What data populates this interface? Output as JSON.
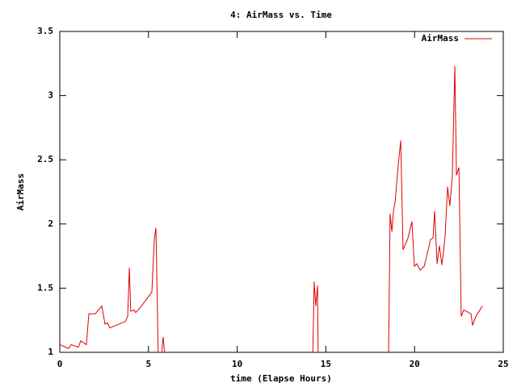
{
  "chart_data": {
    "type": "line",
    "title": "4: AirMass vs. Time",
    "x_label": "time (Elapse Hours)",
    "y_label": "AirMass",
    "x": [
      0,
      0.5,
      0.64,
      1.05,
      1.18,
      1.5,
      1.64,
      2.0,
      2.37,
      2.55,
      2.69,
      2.82,
      3.69,
      3.83,
      3.92,
      4.0,
      4.19,
      4.28,
      4.6,
      5.19,
      5.33,
      5.42,
      5.56,
      5.74,
      5.83,
      5.97,
      10,
      14.25,
      14.34,
      14.43,
      14.53,
      14.57,
      16.5,
      18.53,
      18.62,
      18.72,
      18.81,
      18.9,
      19.08,
      19.22,
      19.35,
      19.63,
      19.85,
      19.99,
      20.13,
      20.31,
      20.54,
      20.77,
      20.9,
      21.04,
      21.13,
      21.27,
      21.4,
      21.54,
      21.72,
      21.86,
      21.99,
      22.13,
      22.27,
      22.36,
      22.5,
      22.63,
      22.77,
      23.18,
      23.27,
      23.45,
      23.82
    ],
    "series": [
      {
        "name": "AirMass",
        "color": "#e00000",
        "values": [
          1.06,
          1.03,
          1.06,
          1.04,
          1.09,
          1.06,
          1.3,
          1.3,
          1.36,
          1.22,
          1.23,
          1.19,
          1.24,
          1.28,
          1.66,
          1.32,
          1.33,
          1.31,
          1.36,
          1.47,
          1.88,
          1.97,
          0.9,
          0.99,
          1.12,
          0.9,
          null,
          0.9,
          1.55,
          1.36,
          1.52,
          0.9,
          null,
          0.9,
          2.08,
          1.94,
          2.1,
          2.17,
          2.46,
          2.65,
          1.8,
          1.89,
          2.02,
          1.67,
          1.69,
          1.64,
          1.67,
          1.8,
          1.88,
          1.89,
          2.1,
          1.69,
          1.83,
          1.68,
          1.9,
          2.29,
          2.14,
          2.38,
          3.23,
          2.38,
          2.44,
          1.28,
          1.33,
          1.3,
          1.21,
          1.28,
          1.36
        ]
      }
    ],
    "xlim": [
      0,
      25
    ],
    "xticks": [
      0,
      5,
      10,
      15,
      20,
      25
    ],
    "ylim": [
      1,
      3.5
    ],
    "yticks": [
      1,
      1.5,
      2,
      2.5,
      3,
      3.5
    ],
    "legend": "top-right"
  }
}
